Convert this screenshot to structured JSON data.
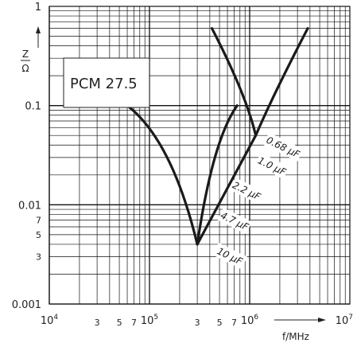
{
  "chart_data": {
    "type": "line",
    "title": "",
    "annotation": "PCM 27.5",
    "x_scale": "log",
    "y_scale": "log",
    "xlim": [
      10000,
      10000000
    ],
    "ylim": [
      0.001,
      1
    ],
    "grid": true,
    "xlabel": "f/MHz",
    "ylabel_top": "Z",
    "ylabel_bottom": "Ω",
    "x_major_ticks": [
      {
        "value": 10000,
        "base": "10",
        "exp": "4"
      },
      {
        "value": 100000,
        "base": "10",
        "exp": "5"
      },
      {
        "value": 1000000,
        "base": "10",
        "exp": "6"
      },
      {
        "value": 10000000,
        "base": "10",
        "exp": "7"
      }
    ],
    "x_minor_ticks": [
      {
        "value": 30000,
        "label": "3"
      },
      {
        "value": 50000,
        "label": "5"
      },
      {
        "value": 70000,
        "label": "7"
      },
      {
        "value": 300000,
        "label": "3"
      },
      {
        "value": 500000,
        "label": "5"
      },
      {
        "value": 700000,
        "label": "7"
      }
    ],
    "y_major_ticks": [
      {
        "value": 1,
        "label": "1"
      },
      {
        "value": 0.1,
        "label": "0.1"
      },
      {
        "value": 0.01,
        "label": "0.01"
      },
      {
        "value": 0.001,
        "label": "0.001"
      }
    ],
    "y_minor_ticks": [
      {
        "value": 0.007,
        "label": "7"
      },
      {
        "value": 0.005,
        "label": "5"
      },
      {
        "value": 0.003,
        "label": "3"
      }
    ],
    "series": [
      {
        "x": [
          60000,
          150000,
          300000
        ],
        "y": [
          0.1,
          0.03,
          0.004
        ]
      },
      {
        "x": [
          300000,
          450000,
          750000
        ],
        "y": [
          0.004,
          0.03,
          0.1
        ]
      },
      {
        "x": [
          420000,
          800000,
          1150000
        ],
        "y": [
          0.6,
          0.15,
          0.05
        ]
      },
      {
        "x": [
          1150000,
          1900000,
          3800000
        ],
        "y": [
          0.05,
          0.15,
          0.6
        ]
      },
      {
        "x": [
          300000,
          1150000
        ],
        "y": [
          0.004,
          0.05
        ]
      }
    ],
    "capacitance_labels": [
      "0.68 μF",
      "1.0 μF",
      "2.2 μF",
      "4.7 μF",
      "10 μF"
    ]
  }
}
